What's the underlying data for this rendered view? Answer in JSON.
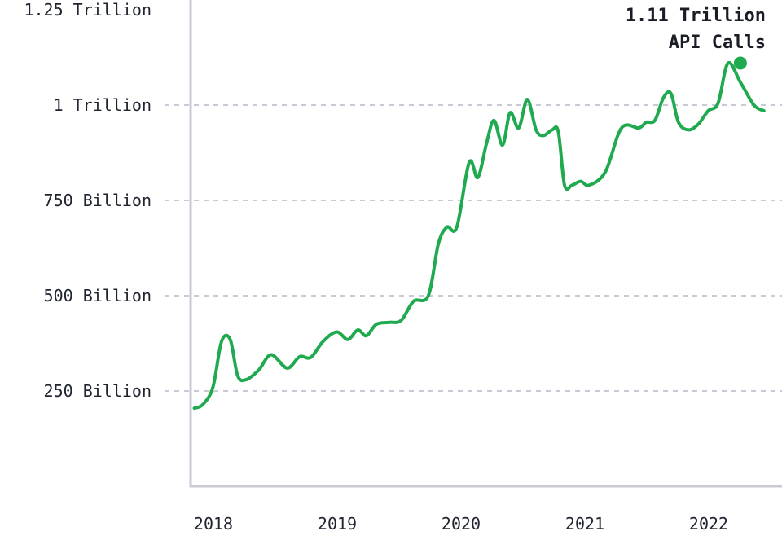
{
  "chart_data": {
    "type": "line",
    "title": "",
    "xlabel": "",
    "ylabel": "",
    "xlim": [
      2018.0,
      2022.9
    ],
    "ylim": [
      0,
      1250
    ],
    "grid": "horizontal dashed at y ticks",
    "line_color": "#1faa4f",
    "grid_color": "#c9cad6",
    "axis_color": "#c9cad6",
    "y_ticks": [
      {
        "value": 250,
        "label": "250 Billion"
      },
      {
        "value": 500,
        "label": "500 Billion"
      },
      {
        "value": 750,
        "label": "750 Billion"
      },
      {
        "value": 1000,
        "label": "1 Trillion"
      },
      {
        "value": 1250,
        "label": "1.25 Trillion"
      }
    ],
    "x_ticks": [
      {
        "value": 2018.0,
        "label": "2018"
      },
      {
        "value": 2019.0,
        "label": "2019"
      },
      {
        "value": 2020.0,
        "label": "2020"
      },
      {
        "value": 2021.0,
        "label": "2021"
      },
      {
        "value": 2022.0,
        "label": "2022"
      }
    ],
    "series": [
      {
        "x": [
          2018.03,
          2018.1,
          2018.18,
          2018.25,
          2018.32,
          2018.38,
          2018.45,
          2018.55,
          2018.65,
          2018.78,
          2018.88,
          2018.97,
          2019.07,
          2019.18,
          2019.27,
          2019.35,
          2019.42,
          2019.5,
          2019.6,
          2019.7,
          2019.8,
          2019.92,
          2020.0,
          2020.07,
          2020.15,
          2020.25,
          2020.32,
          2020.39,
          2020.45,
          2020.52,
          2020.58,
          2020.65,
          2020.72,
          2020.79,
          2020.85,
          2020.92,
          2020.97,
          2021.02,
          2021.08,
          2021.15,
          2021.22,
          2021.35,
          2021.48,
          2021.62,
          2021.68,
          2021.75,
          2021.82,
          2021.88,
          2021.94,
          2022.02,
          2022.1,
          2022.18,
          2022.26,
          2022.34,
          2022.44,
          2022.55,
          2022.63
        ],
        "y": [
          205,
          215,
          260,
          380,
          385,
          290,
          280,
          305,
          345,
          310,
          340,
          338,
          380,
          405,
          385,
          410,
          395,
          425,
          430,
          435,
          485,
          500,
          635,
          680,
          680,
          850,
          810,
          900,
          960,
          895,
          980,
          940,
          1015,
          935,
          920,
          935,
          930,
          790,
          790,
          800,
          790,
          825,
          940,
          940,
          955,
          960,
          1020,
          1030,
          955,
          935,
          950,
          985,
          1005,
          1110,
          1060,
          1000,
          985
        ]
      }
    ],
    "annotations": [
      {
        "x": 2022.44,
        "y": 1110,
        "line1": "1.11 Trillion",
        "line2": "API Calls"
      }
    ]
  }
}
